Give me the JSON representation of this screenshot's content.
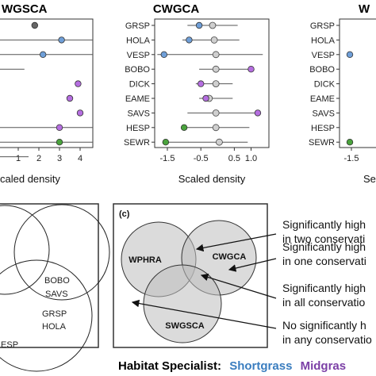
{
  "colors": {
    "shortgrass": "#3a7dbf",
    "midgrass": "#7b3fa6",
    "tallgrass": "#3f8a2e",
    "pt_blue": "#6f9fd8",
    "pt_purple": "#b56ee0",
    "pt_green": "#4aa33d",
    "pt_grey": "#cfcfcf",
    "venn_fill": "#bdbdbd"
  },
  "chart_data": [
    {
      "type": "scatter",
      "panel": "swgsca",
      "title": "WGSCA",
      "xlabel": "caled density",
      "x_ticks": [
        "1",
        "2",
        "3",
        "4"
      ],
      "xlim": [
        0,
        4.5
      ],
      "series": [
        {
          "species": "",
          "x": 1.8,
          "lo": null,
          "hi": null
        },
        {
          "species": "",
          "x": 3.1,
          "lo": 0.0,
          "hi": null,
          "group": "shortgrass"
        },
        {
          "species": "",
          "x": 2.2,
          "lo": 0.0,
          "hi": null,
          "group": "shortgrass"
        },
        {
          "species": "",
          "x": null,
          "lo": 0.0,
          "hi": 1.3
        },
        {
          "species": "",
          "x": 3.9,
          "lo": null,
          "hi": null,
          "group": "midgrass"
        },
        {
          "species": "",
          "x": 3.5,
          "lo": null,
          "hi": null,
          "group": "midgrass"
        },
        {
          "species": "",
          "x": 4.0,
          "lo": null,
          "hi": null,
          "group": "midgrass"
        },
        {
          "species": "",
          "x": 3.0,
          "lo": 0.0,
          "hi": null,
          "group": "midgrass"
        },
        {
          "species": "",
          "x": 3.0,
          "lo": 0.0,
          "hi": null,
          "group": "tallgrass"
        },
        {
          "species": "",
          "x": null,
          "lo": 0.0,
          "hi": 1.5
        }
      ]
    },
    {
      "type": "scatter",
      "panel": "cwgca",
      "title": "CWGCA",
      "xlabel": "Scaled density",
      "x_ticks": [
        "-1.5",
        "-0.5",
        "0.5",
        "1.0"
      ],
      "x_tick_values": [
        -1.5,
        -0.5,
        0.5,
        1.0
      ],
      "xlim": [
        -1.8,
        1.35
      ],
      "categories": [
        "GRSP",
        "HOLA",
        "VESP",
        "BOBO",
        "DICK",
        "EAME",
        "SAVS",
        "HESP",
        "SEWR"
      ],
      "series": [
        {
          "species": "GRSP",
          "x": -0.55,
          "ref": -0.15,
          "lo": -0.9,
          "hi": 0.6,
          "group": "shortgrass"
        },
        {
          "species": "HOLA",
          "x": -0.85,
          "ref": -0.1,
          "lo": -1.05,
          "hi": 0.65,
          "group": "shortgrass"
        },
        {
          "species": "VESP",
          "x": -1.6,
          "ref": -0.05,
          "lo": -1.8,
          "hi": 1.35,
          "group": "shortgrass"
        },
        {
          "species": "BOBO",
          "x": 1.0,
          "ref": -0.05,
          "lo": -0.55,
          "hi": 1.0,
          "group": "midgrass"
        },
        {
          "species": "DICK",
          "x": -0.5,
          "ref": -0.05,
          "lo": -0.65,
          "hi": 0.45,
          "group": "midgrass"
        },
        {
          "species": "EAME",
          "x": -0.35,
          "ref": -0.25,
          "lo": -0.55,
          "hi": 0.45,
          "group": "midgrass"
        },
        {
          "species": "SAVS",
          "x": 1.2,
          "ref": -0.05,
          "lo": -0.9,
          "hi": 1.2,
          "group": "midgrass"
        },
        {
          "species": "HESP",
          "x": -1.0,
          "ref": -0.05,
          "lo": -1.05,
          "hi": 0.95,
          "group": "tallgrass"
        },
        {
          "species": "SEWR",
          "x": -1.55,
          "ref": 0.05,
          "lo": -1.65,
          "hi": 0.9,
          "group": "tallgrass"
        }
      ]
    },
    {
      "type": "scatter",
      "panel": "wphra",
      "title": "W",
      "xlabel": "Se",
      "x_ticks": [
        "-1.5"
      ],
      "categories": [
        "GRSP",
        "HOLA",
        "VESP",
        "BOBO",
        "DICK",
        "EAME",
        "SAVS",
        "HESP",
        "SEWR"
      ],
      "series": [
        {
          "species": "VESP",
          "x": -1.55,
          "group": "shortgrass"
        },
        {
          "species": "SEWR",
          "x": -1.55,
          "group": "tallgrass"
        }
      ]
    }
  ],
  "venn_left": {
    "labels": [
      {
        "text": "BOBO",
        "group": "midgrass"
      },
      {
        "text": "SAVS",
        "group": "midgrass"
      },
      {
        "text": "GRSP",
        "group": "shortgrass"
      },
      {
        "text": "HOLA",
        "group": "shortgrass"
      },
      {
        "text": "IESP",
        "group": "tallgrass"
      }
    ]
  },
  "venn_c": {
    "panel_label": "(c)",
    "circles": [
      "WPHRA",
      "CWGCA",
      "SWGSCA"
    ],
    "callouts": [
      {
        "line1": "Significantly high",
        "line2": "in two conservati"
      },
      {
        "line1": "Significantly high",
        "line2": "in one conservati"
      },
      {
        "line1": "Significantly high",
        "line2": "in all conservatio"
      },
      {
        "line1": "No significantly h",
        "line2": "in any conservatio"
      }
    ]
  },
  "legend": {
    "prefix": "Habitat Specialist:",
    "items": [
      {
        "text": "Shortgrass",
        "group": "shortgrass"
      },
      {
        "text": "Midgras",
        "group": "midgrass"
      }
    ]
  }
}
